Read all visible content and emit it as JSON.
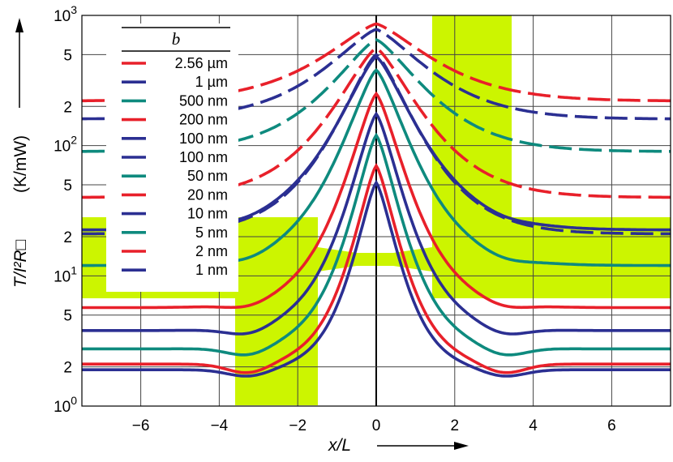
{
  "chart_data": {
    "type": "line",
    "xlabel": "x/L",
    "ylabel_main": "T/I²R□",
    "ylabel_unit": "(K/mW)",
    "xlim": [
      -7.5,
      7.5
    ],
    "ylim": [
      1,
      1000
    ],
    "yscale": "log",
    "grid": true,
    "x_ticks": [
      "−6",
      "−4",
      "−2",
      "0",
      "2",
      "4",
      "6"
    ],
    "x_tick_values": [
      -6,
      -4,
      -2,
      0,
      2,
      4,
      6
    ],
    "y_major_ticks": [
      {
        "value": 1,
        "base": "10",
        "exp": "0"
      },
      {
        "value": 10,
        "base": "10",
        "exp": "1"
      },
      {
        "value": 100,
        "base": "10",
        "exp": "2"
      },
      {
        "value": 1000,
        "base": "10",
        "exp": "3"
      }
    ],
    "y_minor_ticks": [
      {
        "value": 2,
        "label": "2"
      },
      {
        "value": 5,
        "label": "5"
      },
      {
        "value": 20,
        "label": "2"
      },
      {
        "value": 50,
        "label": "5"
      },
      {
        "value": 200,
        "label": "2"
      },
      {
        "value": 500,
        "label": "5"
      }
    ],
    "colors": {
      "red": "#e8202a",
      "navy": "#2b2f92",
      "teal": "#0e8a7e",
      "highlight": "#ccf500"
    },
    "legend": {
      "title": "b",
      "placement": "upper-left"
    },
    "series": [
      {
        "name": "2.56 µm",
        "color": "red",
        "dashed": true,
        "peak": 860,
        "far": 220,
        "dip": 1.0,
        "w": 2.1
      },
      {
        "name": "1 µm",
        "color": "navy",
        "dashed": true,
        "peak": 780,
        "far": 160,
        "dip": 1.0,
        "w": 2.0
      },
      {
        "name": "500 nm",
        "color": "teal",
        "dashed": true,
        "peak": 650,
        "far": 90,
        "dip": 1.0,
        "w": 1.9
      },
      {
        "name": "200 nm",
        "color": "red",
        "dashed": true,
        "peak": 560,
        "far": 40,
        "dip": 1.0,
        "w": 1.8
      },
      {
        "name": "100 nm",
        "color": "navy",
        "dashed": true,
        "peak": 500,
        "far": 21,
        "dip": 1.0,
        "w": 1.7
      },
      {
        "name": "100 nm",
        "color": "navy",
        "dashed": false,
        "peak": 480,
        "far": 22.5,
        "dip": 0.97,
        "w": 1.7
      },
      {
        "name": "50 nm",
        "color": "teal",
        "dashed": false,
        "peak": 380,
        "far": 12,
        "dip": 0.94,
        "w": 1.5
      },
      {
        "name": "20 nm",
        "color": "red",
        "dashed": false,
        "peak": 250,
        "far": 5.7,
        "dip": 0.92,
        "w": 1.3
      },
      {
        "name": "10 nm",
        "color": "navy",
        "dashed": false,
        "peak": 175,
        "far": 3.8,
        "dip": 0.88,
        "w": 1.2
      },
      {
        "name": "5 nm",
        "color": "teal",
        "dashed": false,
        "peak": 120,
        "far": 2.75,
        "dip": 0.86,
        "w": 1.1
      },
      {
        "name": "2 nm",
        "color": "red",
        "dashed": false,
        "peak": 70,
        "far": 2.1,
        "dip": 0.84,
        "w": 1.0
      },
      {
        "name": "1 nm",
        "color": "navy",
        "dashed": false,
        "peak": 52,
        "far": 1.9,
        "dip": 0.88,
        "w": 0.95
      }
    ]
  }
}
